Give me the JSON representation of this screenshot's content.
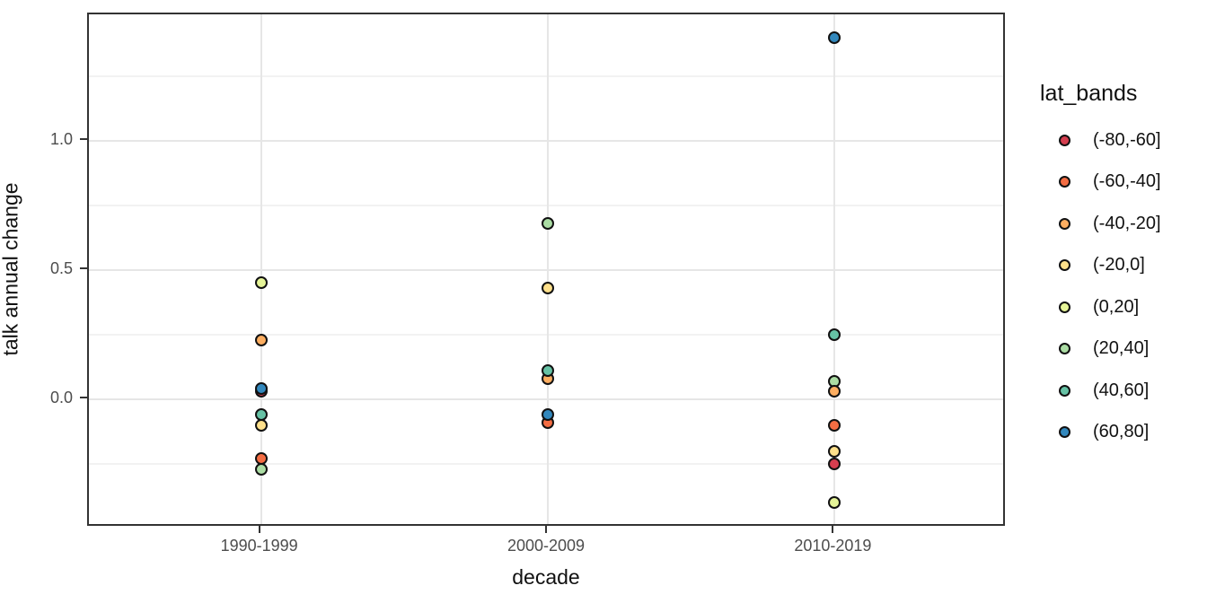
{
  "figure": {
    "x_axis_title": "decade",
    "y_axis_title": "talk annual change",
    "y_ticks": [
      {
        "label": "1.0",
        "value": 1.0
      },
      {
        "label": "0.5",
        "value": 0.5
      },
      {
        "label": "0.0",
        "value": 0.0
      }
    ],
    "y_minor_values": [
      1.25,
      0.75,
      0.25,
      -0.25
    ],
    "x_categories": [
      "1990-1999",
      "2000-2009",
      "2010-2019"
    ]
  },
  "legend": {
    "title": "lat_bands",
    "entries": [
      {
        "label": "(-80,-60]",
        "color": "#d53e4f"
      },
      {
        "label": "(-60,-40]",
        "color": "#f46d43"
      },
      {
        "label": "(-40,-20]",
        "color": "#fdae61"
      },
      {
        "label": "(-20,0]",
        "color": "#fee08b"
      },
      {
        "label": "(0,20]",
        "color": "#e6f598"
      },
      {
        "label": "(20,40]",
        "color": "#abdda4"
      },
      {
        "label": "(40,60]",
        "color": "#66c2a5"
      },
      {
        "label": "(60,80]",
        "color": "#3288bd"
      }
    ]
  },
  "chart_data": {
    "type": "scatter",
    "title": "",
    "xlabel": "decade",
    "ylabel": "talk annual change",
    "x_categories": [
      "1990-1999",
      "2000-2009",
      "2010-2019"
    ],
    "ylim": [
      -0.5,
      1.49
    ],
    "grid": "major+minor",
    "legend_position": "right",
    "legend_title": "lat_bands",
    "points": [
      {
        "decade": "1990-1999",
        "band": "(0,20]",
        "value": 0.45
      },
      {
        "decade": "1990-1999",
        "band": "(-40,-20]",
        "value": 0.23
      },
      {
        "decade": "1990-1999",
        "band": "(-80,-60]",
        "value": 0.03
      },
      {
        "decade": "1990-1999",
        "band": "(60,80]",
        "value": 0.04
      },
      {
        "decade": "1990-1999",
        "band": "(40,60]",
        "value": -0.06
      },
      {
        "decade": "1990-1999",
        "band": "(-20,0]",
        "value": -0.1
      },
      {
        "decade": "1990-1999",
        "band": "(-60,-40]",
        "value": -0.23
      },
      {
        "decade": "1990-1999",
        "band": "(20,40]",
        "value": -0.27
      },
      {
        "decade": "2000-2009",
        "band": "(20,40]",
        "value": 0.68
      },
      {
        "decade": "2000-2009",
        "band": "(-20,0]",
        "value": 0.43
      },
      {
        "decade": "2000-2009",
        "band": "(-40,-20]",
        "value": 0.08
      },
      {
        "decade": "2000-2009",
        "band": "(40,60]",
        "value": 0.11
      },
      {
        "decade": "2000-2009",
        "band": "(-60,-40]",
        "value": -0.09
      },
      {
        "decade": "2000-2009",
        "band": "(60,80]",
        "value": -0.06
      },
      {
        "decade": "2010-2019",
        "band": "(60,80]",
        "value": 1.4
      },
      {
        "decade": "2010-2019",
        "band": "(40,60]",
        "value": 0.25
      },
      {
        "decade": "2010-2019",
        "band": "(20,40]",
        "value": 0.07
      },
      {
        "decade": "2010-2019",
        "band": "(-40,-20]",
        "value": 0.03
      },
      {
        "decade": "2010-2019",
        "band": "(-60,-40]",
        "value": -0.1
      },
      {
        "decade": "2010-2019",
        "band": "(-20,0]",
        "value": -0.2
      },
      {
        "decade": "2010-2019",
        "band": "(-80,-60]",
        "value": -0.25
      },
      {
        "decade": "2010-2019",
        "band": "(0,20]",
        "value": -0.4
      }
    ]
  }
}
